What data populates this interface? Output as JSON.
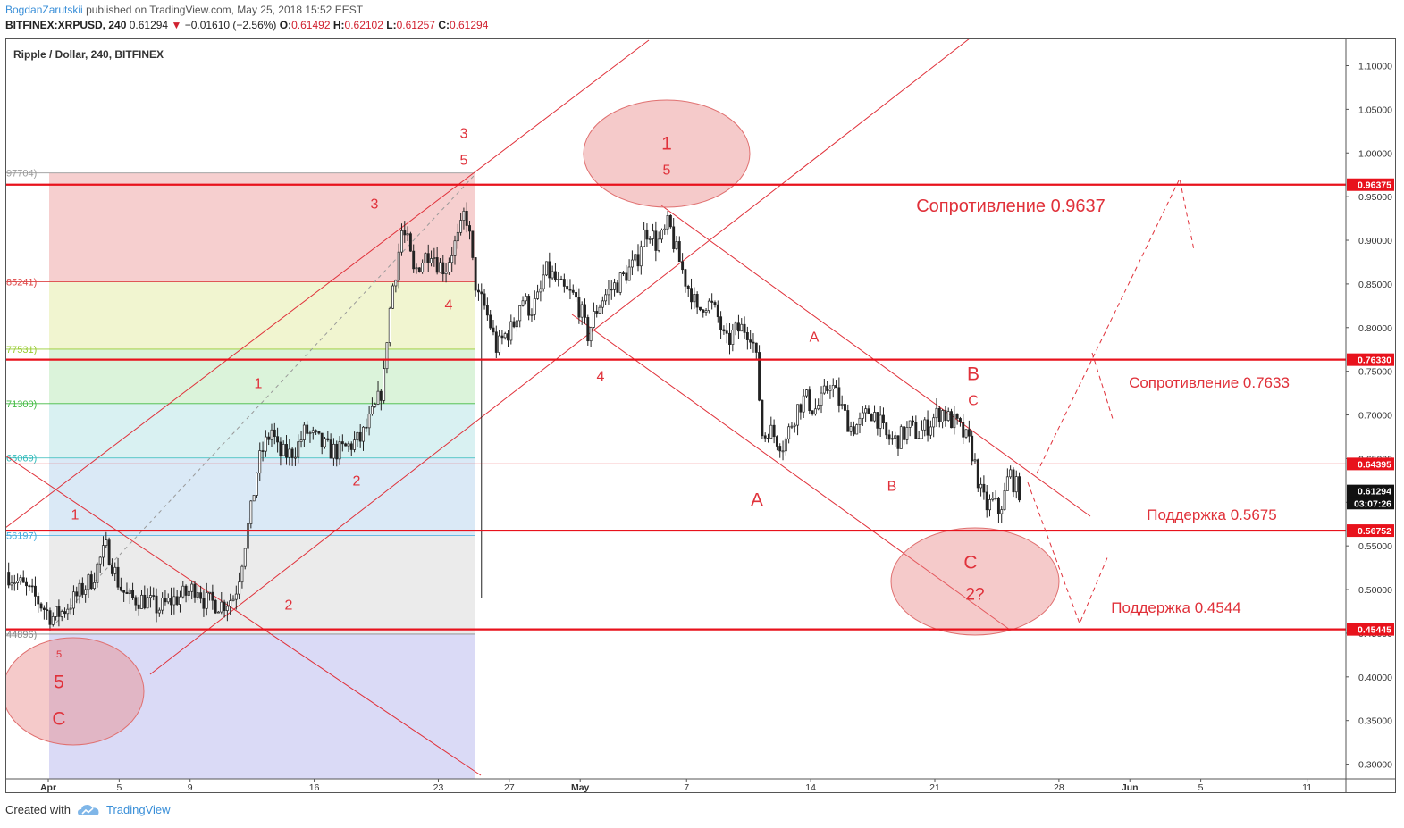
{
  "header": {
    "author": "BogdanZarutskii",
    "published": "published on TradingView.com, May 25, 2018 15:52 EEST",
    "symbol": "BITFINEX:XRPUSD, 240",
    "last": "0.61294",
    "change": "−0.01610 (−2.56%)",
    "o_label": "O:",
    "o_val": "0.61492",
    "h_label": "H:",
    "h_val": "0.62102",
    "l_label": "L:",
    "l_val": "0.61257",
    "c_label": "C:",
    "c_val": "0.61294"
  },
  "footer": {
    "created_with": "Created with",
    "brand": "TradingView"
  },
  "colors": {
    "up": "#ffffff",
    "down": "#222222",
    "wick": "#222222",
    "annotation": "#e0313a",
    "level_line": "#e8121c",
    "fib_red": "#f4c7c7",
    "fib_yellow": "#eef3c8",
    "fib_green": "#d5f1d4",
    "fib_teal": "#d2eef0",
    "fib_blue": "#d3e5f5",
    "fib_grey": "#e8e8e8",
    "fib_purple": "#d4d4f4"
  },
  "chart_data": {
    "type": "candlestick",
    "title": "Ripple / Dollar, 240, BITFINEX",
    "ylim": [
      0.28,
      1.125
    ],
    "y_ticks": [
      "1.10000",
      "1.05000",
      "1.00000",
      "0.95000",
      "0.90000",
      "0.85000",
      "0.80000",
      "0.75000",
      "0.70000",
      "0.65000",
      "0.60000",
      "0.55000",
      "0.50000",
      "0.45000",
      "0.40000",
      "0.35000",
      "0.30000"
    ],
    "x_tick_labels": [
      {
        "label": "Apr",
        "day": 0
      },
      {
        "label": "5",
        "day": 4
      },
      {
        "label": "9",
        "day": 8
      },
      {
        "label": "16",
        "day": 15
      },
      {
        "label": "23",
        "day": 22
      },
      {
        "label": "27",
        "day": 26
      },
      {
        "label": "May",
        "day": 30
      },
      {
        "label": "7",
        "day": 36
      },
      {
        "label": "14",
        "day": 43
      },
      {
        "label": "21",
        "day": 50
      },
      {
        "label": "28",
        "day": 57
      },
      {
        "label": "Jun",
        "day": 61
      },
      {
        "label": "5",
        "day": 65
      },
      {
        "label": "11",
        "day": 71
      }
    ],
    "price_path": [
      [
        -2.4,
        0.52
      ],
      [
        -1.5,
        0.505
      ],
      [
        -0.7,
        0.49
      ],
      [
        0.2,
        0.468
      ],
      [
        0.8,
        0.475
      ],
      [
        1.5,
        0.49
      ],
      [
        2.0,
        0.502
      ],
      [
        2.5,
        0.513
      ],
      [
        3.0,
        0.538
      ],
      [
        3.3,
        0.548
      ],
      [
        3.6,
        0.53
      ],
      [
        4.0,
        0.505
      ],
      [
        4.5,
        0.49
      ],
      [
        5.5,
        0.488
      ],
      [
        6.2,
        0.478
      ],
      [
        7.0,
        0.488
      ],
      [
        7.8,
        0.495
      ],
      [
        8.4,
        0.505
      ],
      [
        8.8,
        0.487
      ],
      [
        9.8,
        0.483
      ],
      [
        10.5,
        0.492
      ],
      [
        10.8,
        0.52
      ],
      [
        11.1,
        0.555
      ],
      [
        11.4,
        0.585
      ],
      [
        11.8,
        0.64
      ],
      [
        12.1,
        0.66
      ],
      [
        12.6,
        0.683
      ],
      [
        13.0,
        0.655
      ],
      [
        13.6,
        0.655
      ],
      [
        14.0,
        0.662
      ],
      [
        14.5,
        0.682
      ],
      [
        15.2,
        0.67
      ],
      [
        15.8,
        0.66
      ],
      [
        16.4,
        0.658
      ],
      [
        17.0,
        0.665
      ],
      [
        17.6,
        0.672
      ],
      [
        18.0,
        0.688
      ],
      [
        18.5,
        0.71
      ],
      [
        18.9,
        0.735
      ],
      [
        19.1,
        0.79
      ],
      [
        19.4,
        0.845
      ],
      [
        19.7,
        0.875
      ],
      [
        19.9,
        0.912
      ],
      [
        20.3,
        0.895
      ],
      [
        20.6,
        0.862
      ],
      [
        21.0,
        0.875
      ],
      [
        21.6,
        0.89
      ],
      [
        22.0,
        0.872
      ],
      [
        22.4,
        0.868
      ],
      [
        22.8,
        0.89
      ],
      [
        23.2,
        0.905
      ],
      [
        23.5,
        0.935
      ],
      [
        23.7,
        0.915
      ],
      [
        24.0,
        0.86
      ],
      [
        24.3,
        0.83
      ],
      [
        24.5,
        0.83
      ],
      [
        24.9,
        0.805
      ],
      [
        25.3,
        0.775
      ],
      [
        25.7,
        0.79
      ],
      [
        26.2,
        0.8
      ],
      [
        26.7,
        0.835
      ],
      [
        27.2,
        0.82
      ],
      [
        27.7,
        0.835
      ],
      [
        28.0,
        0.865
      ],
      [
        28.4,
        0.86
      ],
      [
        28.8,
        0.847
      ],
      [
        29.2,
        0.84
      ],
      [
        29.7,
        0.835
      ],
      [
        30.1,
        0.815
      ],
      [
        30.4,
        0.79
      ],
      [
        30.9,
        0.82
      ],
      [
        31.3,
        0.835
      ],
      [
        31.8,
        0.845
      ],
      [
        32.3,
        0.855
      ],
      [
        32.7,
        0.865
      ],
      [
        33.2,
        0.875
      ],
      [
        33.5,
        0.905
      ],
      [
        33.9,
        0.913
      ],
      [
        34.3,
        0.895
      ],
      [
        34.7,
        0.905
      ],
      [
        35.0,
        0.92
      ],
      [
        35.3,
        0.895
      ],
      [
        35.7,
        0.87
      ],
      [
        36.0,
        0.85
      ],
      [
        36.3,
        0.84
      ],
      [
        36.6,
        0.815
      ],
      [
        37.0,
        0.83
      ],
      [
        37.4,
        0.825
      ],
      [
        37.8,
        0.81
      ],
      [
        38.2,
        0.78
      ],
      [
        38.7,
        0.795
      ],
      [
        39.2,
        0.8
      ],
      [
        39.6,
        0.795
      ],
      [
        39.9,
        0.77
      ],
      [
        40.1,
        0.72
      ],
      [
        40.3,
        0.67
      ],
      [
        40.6,
        0.685
      ],
      [
        41.0,
        0.675
      ],
      [
        41.5,
        0.665
      ],
      [
        41.9,
        0.69
      ],
      [
        42.3,
        0.71
      ],
      [
        42.7,
        0.72
      ],
      [
        43.2,
        0.705
      ],
      [
        43.6,
        0.715
      ],
      [
        44.1,
        0.738
      ],
      [
        44.5,
        0.72
      ],
      [
        44.9,
        0.7
      ],
      [
        45.3,
        0.685
      ],
      [
        45.8,
        0.69
      ],
      [
        46.3,
        0.705
      ],
      [
        46.7,
        0.7
      ],
      [
        47.2,
        0.675
      ],
      [
        47.7,
        0.67
      ],
      [
        48.1,
        0.675
      ],
      [
        48.6,
        0.685
      ],
      [
        49.1,
        0.678
      ],
      [
        49.6,
        0.688
      ],
      [
        50.0,
        0.698
      ],
      [
        50.4,
        0.705
      ],
      [
        50.8,
        0.695
      ],
      [
        51.2,
        0.69
      ],
      [
        51.6,
        0.678
      ],
      [
        52.0,
        0.665
      ],
      [
        52.3,
        0.64
      ],
      [
        52.6,
        0.61
      ],
      [
        52.9,
        0.595
      ],
      [
        53.3,
        0.6
      ],
      [
        53.6,
        0.59
      ],
      [
        53.9,
        0.605
      ],
      [
        54.2,
        0.635
      ],
      [
        54.5,
        0.62
      ],
      [
        54.8,
        0.613
      ]
    ],
    "horizontal_levels": [
      {
        "value": 0.9637,
        "tag": "0.96375",
        "label": "Сопротивление 0.9637"
      },
      {
        "value": 0.7633,
        "tag": "0.76330",
        "label": "Сопротивление 0.7633"
      },
      {
        "value": 0.6439,
        "tag": "0.64395",
        "label": ""
      },
      {
        "value": 0.5675,
        "tag": "0.56752",
        "label": "Поддержка 0.5675"
      },
      {
        "value": 0.4544,
        "tag": "0.45445",
        "label": "Поддержка 0.4544"
      }
    ],
    "price_tags": [
      {
        "value": 0.61294,
        "tag": "0.61294"
      },
      {
        "value": 0.599,
        "tag": "03:07:26"
      }
    ],
    "fib_levels": [
      {
        "value": 0.97704,
        "label": "97704)"
      },
      {
        "value": 0.85241,
        "label": "85241)"
      },
      {
        "value": 0.77531,
        "label": "77531)"
      },
      {
        "value": 0.713,
        "label": "71300)"
      },
      {
        "value": 0.65069,
        "label": "65069)"
      },
      {
        "value": 0.56197,
        "label": "56197)"
      },
      {
        "value": 0.44896,
        "label": "44896)"
      }
    ],
    "wave_labels": [
      "1",
      "2",
      "3",
      "4",
      "5",
      "A",
      "B",
      "C",
      "2?"
    ],
    "ellipse_labels": {
      "top_major": "1",
      "top_minor": "5",
      "left_small": "5",
      "left_major": "5",
      "left_c": "C",
      "right_c": "C",
      "right_q": "2?"
    },
    "forecast": "dashed"
  }
}
